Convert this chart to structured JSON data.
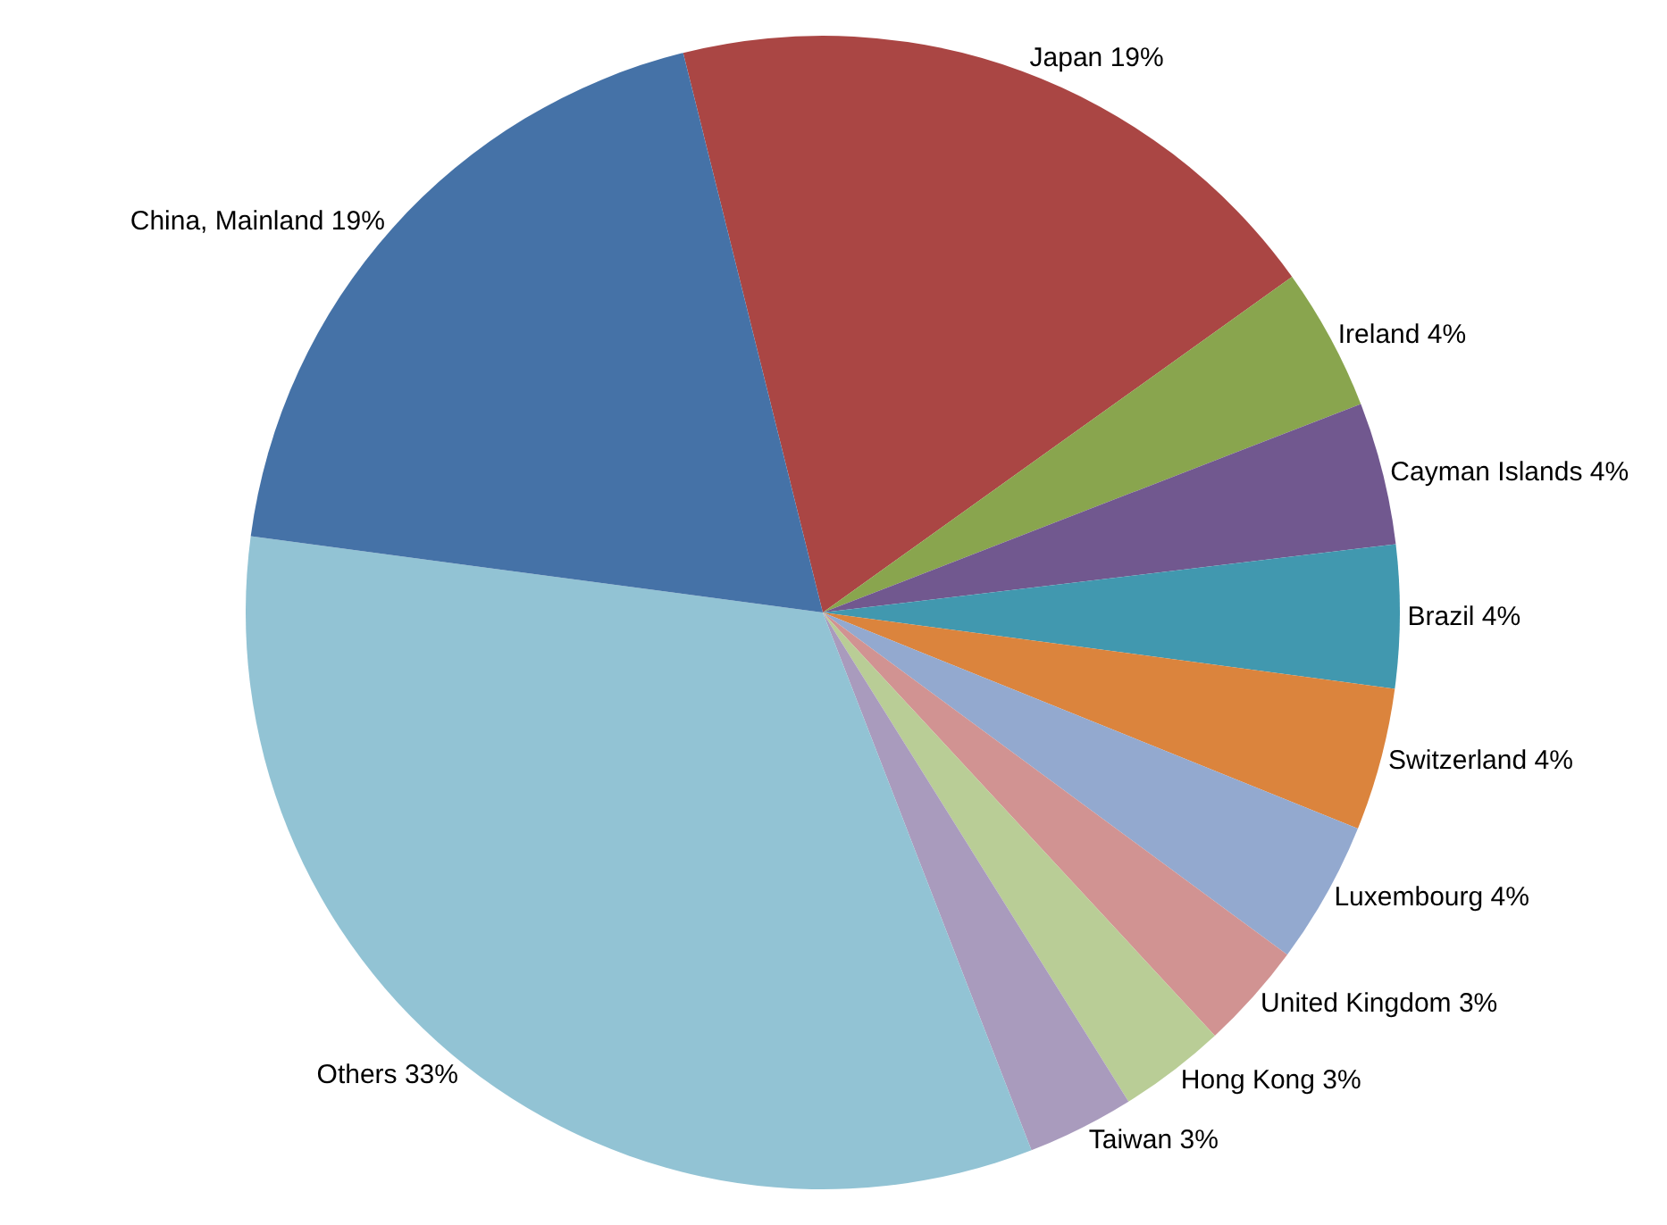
{
  "chart_data": {
    "type": "pie",
    "categories": [
      "Japan",
      "Ireland",
      "Cayman Islands",
      "Brazil",
      "Switzerland",
      "Luxembourg",
      "United Kingdom",
      "Hong Kong",
      "Taiwan",
      "Others",
      "China, Mainland"
    ],
    "values": [
      19,
      4,
      4,
      4,
      4,
      4,
      3,
      3,
      3,
      33,
      19
    ],
    "value_labels": [
      "19%",
      "4%",
      "4%",
      "4%",
      "4%",
      "4%",
      "3%",
      "3%",
      "3%",
      "33%",
      "19%"
    ],
    "colors": [
      "#aa4644",
      "#89a54e",
      "#71588f",
      "#4198af",
      "#db843d",
      "#93a9cf",
      "#d19392",
      "#b9cd96",
      "#a99bbd",
      "#92c3d4",
      "#4572a7"
    ],
    "legend": false
  }
}
